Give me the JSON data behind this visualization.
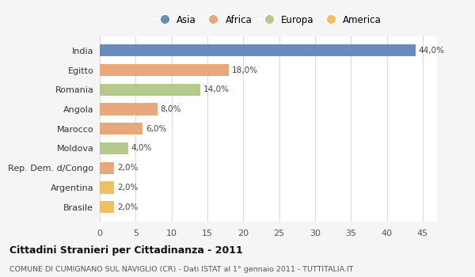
{
  "categories": [
    "India",
    "Egitto",
    "Romania",
    "Angola",
    "Marocco",
    "Moldova",
    "Rep. Dem. d/Congo",
    "Argentina",
    "Brasile"
  ],
  "values": [
    44.0,
    18.0,
    14.0,
    8.0,
    6.0,
    4.0,
    2.0,
    2.0,
    2.0
  ],
  "colors": [
    "#6b8cba",
    "#e8a87c",
    "#b5c98e",
    "#e8a87c",
    "#e8a87c",
    "#b5c98e",
    "#e8a87c",
    "#f0c060",
    "#f0c060"
  ],
  "labels": [
    "44,0%",
    "18,0%",
    "14,0%",
    "8,0%",
    "6,0%",
    "4,0%",
    "2,0%",
    "2,0%",
    "2,0%"
  ],
  "legend_labels": [
    "Asia",
    "Africa",
    "Europa",
    "America"
  ],
  "legend_colors": [
    "#6b8cba",
    "#e8a87c",
    "#b5c98e",
    "#f0c060"
  ],
  "title": "Cittadini Stranieri per Cittadinanza - 2011",
  "subtitle": "COMUNE DI CUMIGNANO SUL NAVIGLIO (CR) - Dati ISTAT al 1° gennaio 2011 - TUTTITALIA.IT",
  "xlim": [
    0,
    47
  ],
  "xticks": [
    0,
    5,
    10,
    15,
    20,
    25,
    30,
    35,
    40,
    45
  ],
  "background_color": "#f5f5f5",
  "plot_bg_color": "#ffffff",
  "grid_color": "#d8d8d8"
}
